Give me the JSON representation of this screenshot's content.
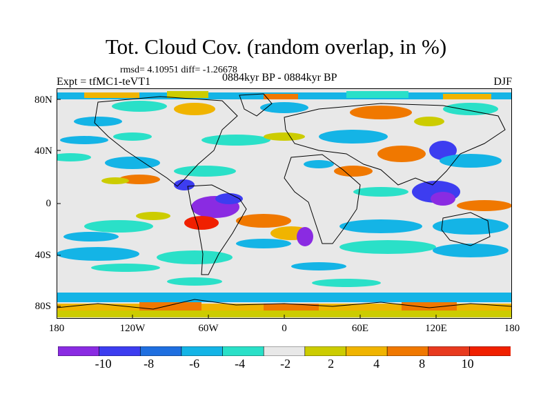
{
  "plot": {
    "title": "Tot. Cloud Cov. (random overlap, in %)",
    "stats": "rmsd= 4.10951 diff= -1.26678",
    "experiment": "Expt = tfMC1-teVT1",
    "period": "0884kyr BP - 0884kyr BP",
    "season": "DJF"
  },
  "map_axes": {
    "longitude_labels": [
      "180",
      "120W",
      "60W",
      "0",
      "60E",
      "120E",
      "180"
    ],
    "latitude_labels": [
      "80N",
      "40N",
      "0",
      "40S",
      "80S"
    ],
    "lon_range": [
      -180,
      180
    ],
    "lat_range": [
      -90,
      90
    ]
  },
  "colorbar": {
    "levels": [
      "-10",
      "-8",
      "-6",
      "-4",
      "-2",
      "2",
      "4",
      "8",
      "10"
    ],
    "colors": [
      "#8a2be2",
      "#3d3df0",
      "#1f6fe0",
      "#14b4e6",
      "#2ae0c8",
      "#e8e8e8",
      "#cccc00",
      "#f0b400",
      "#f07800",
      "#e83a1e",
      "#f02000"
    ]
  },
  "colors": {
    "land_outline": "#000000",
    "ocean_background": "#e8e8e8"
  }
}
